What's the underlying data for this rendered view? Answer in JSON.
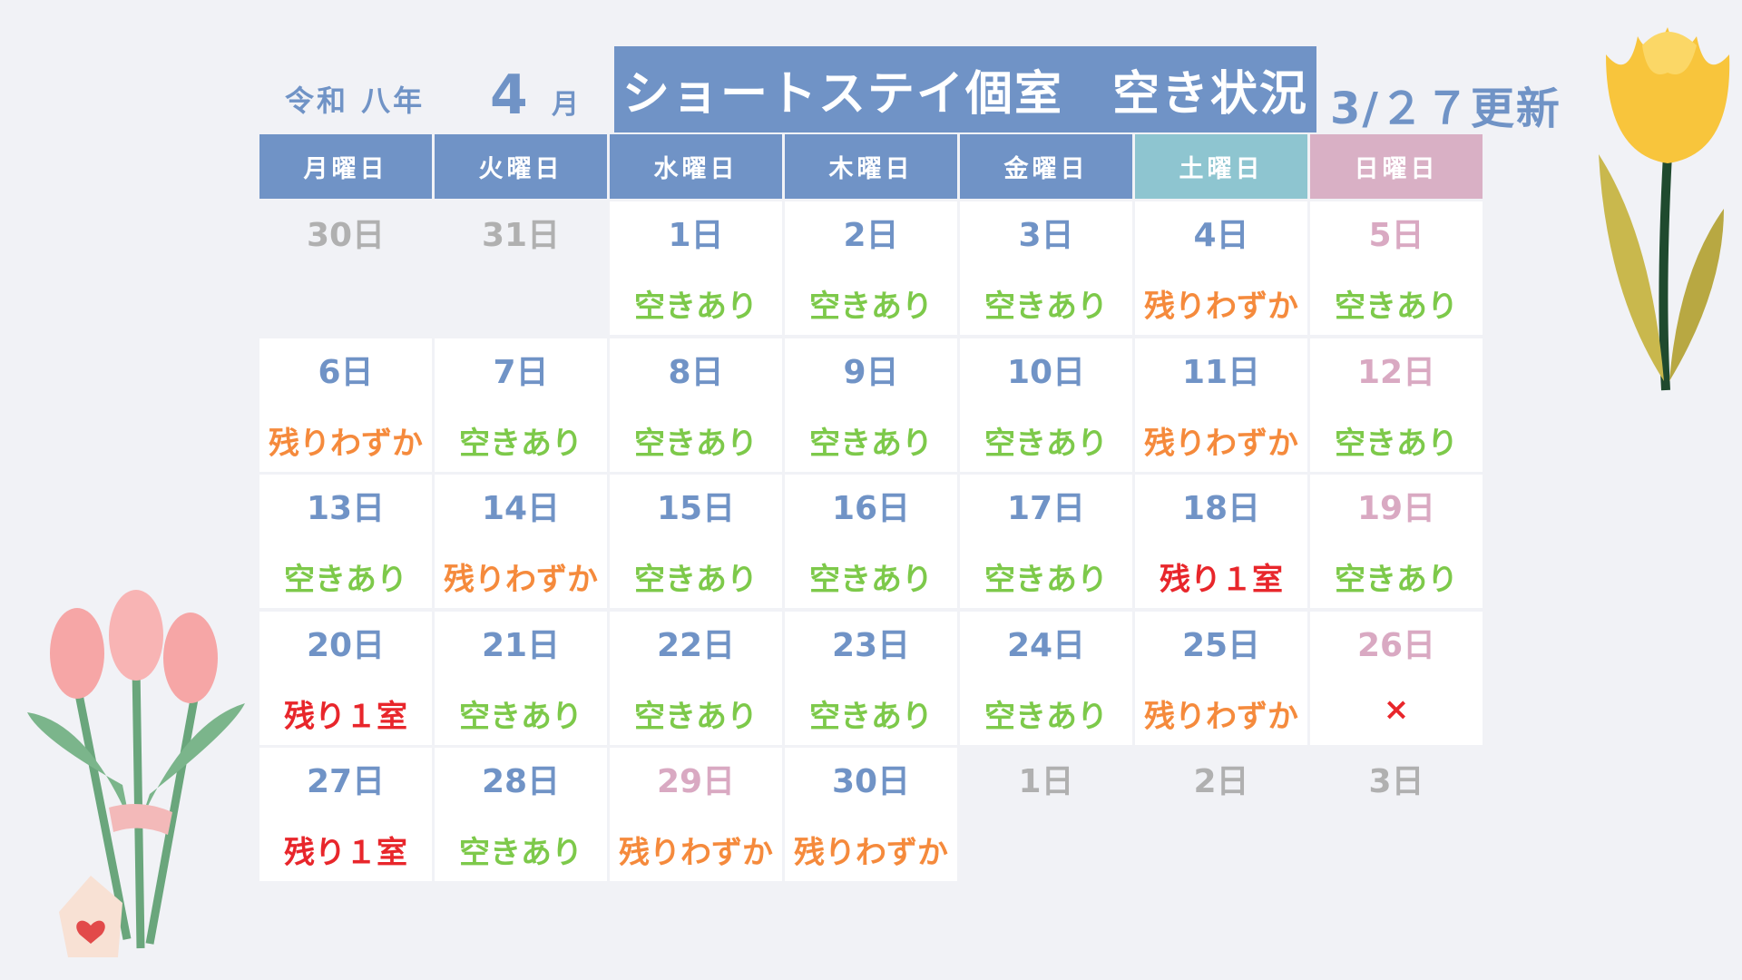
{
  "header": {
    "era": "令和 八年",
    "month": "4",
    "month_unit": "月",
    "title": "ショートステイ個室　空き状況",
    "updated": "3/２７更新"
  },
  "weekdays": [
    {
      "label": "月曜日",
      "color": "#7093c6"
    },
    {
      "label": "火曜日",
      "color": "#7093c6"
    },
    {
      "label": "水曜日",
      "color": "#7093c6"
    },
    {
      "label": "木曜日",
      "color": "#7093c6"
    },
    {
      "label": "金曜日",
      "color": "#7093c6"
    },
    {
      "label": "土曜日",
      "color": "#8ec5d0"
    },
    {
      "label": "日曜日",
      "color": "#d9b0c5"
    }
  ],
  "weeks": [
    [
      {
        "day": "30日",
        "day_color": "#b0b0b0"
      },
      {
        "day": "31日",
        "day_color": "#b0b0b0"
      },
      {
        "day": "1日",
        "day_color": "#7093c6",
        "status": "空きあり",
        "status_color": "#7dc94a"
      },
      {
        "day": "2日",
        "day_color": "#7093c6",
        "status": "空きあり",
        "status_color": "#7dc94a"
      },
      {
        "day": "3日",
        "day_color": "#7093c6",
        "status": "空きあり",
        "status_color": "#7dc94a"
      },
      {
        "day": "4日",
        "day_color": "#7093c6",
        "status": "残りわずか",
        "status_color": "#f58a3c"
      },
      {
        "day": "5日",
        "day_color": "#d9a9c2",
        "status": "空きあり",
        "status_color": "#7dc94a"
      }
    ],
    [
      {
        "day": "6日",
        "day_color": "#7093c6",
        "status": "残りわずか",
        "status_color": "#f58a3c"
      },
      {
        "day": "7日",
        "day_color": "#7093c6",
        "status": "空きあり",
        "status_color": "#7dc94a"
      },
      {
        "day": "8日",
        "day_color": "#7093c6",
        "status": "空きあり",
        "status_color": "#7dc94a"
      },
      {
        "day": "9日",
        "day_color": "#7093c6",
        "status": "空きあり",
        "status_color": "#7dc94a"
      },
      {
        "day": "10日",
        "day_color": "#7093c6",
        "status": "空きあり",
        "status_color": "#7dc94a"
      },
      {
        "day": "11日",
        "day_color": "#7093c6",
        "status": "残りわずか",
        "status_color": "#f58a3c"
      },
      {
        "day": "12日",
        "day_color": "#d9a9c2",
        "status": "空きあり",
        "status_color": "#7dc94a"
      }
    ],
    [
      {
        "day": "13日",
        "day_color": "#7093c6",
        "status": "空きあり",
        "status_color": "#7dc94a"
      },
      {
        "day": "14日",
        "day_color": "#7093c6",
        "status": "残りわずか",
        "status_color": "#f58a3c"
      },
      {
        "day": "15日",
        "day_color": "#7093c6",
        "status": "空きあり",
        "status_color": "#7dc94a"
      },
      {
        "day": "16日",
        "day_color": "#7093c6",
        "status": "空きあり",
        "status_color": "#7dc94a"
      },
      {
        "day": "17日",
        "day_color": "#7093c6",
        "status": "空きあり",
        "status_color": "#7dc94a"
      },
      {
        "day": "18日",
        "day_color": "#7093c6",
        "status": "残り１室",
        "status_color": "#e8262b"
      },
      {
        "day": "19日",
        "day_color": "#d9a9c2",
        "status": "空きあり",
        "status_color": "#7dc94a"
      }
    ],
    [
      {
        "day": "20日",
        "day_color": "#7093c6",
        "status": "残り１室",
        "status_color": "#e8262b"
      },
      {
        "day": "21日",
        "day_color": "#7093c6",
        "status": "空きあり",
        "status_color": "#7dc94a"
      },
      {
        "day": "22日",
        "day_color": "#7093c6",
        "status": "空きあり",
        "status_color": "#7dc94a"
      },
      {
        "day": "23日",
        "day_color": "#7093c6",
        "status": "空きあり",
        "status_color": "#7dc94a"
      },
      {
        "day": "24日",
        "day_color": "#7093c6",
        "status": "空きあり",
        "status_color": "#7dc94a"
      },
      {
        "day": "25日",
        "day_color": "#7093c6",
        "status": "残りわずか",
        "status_color": "#f58a3c"
      },
      {
        "day": "26日",
        "day_color": "#d9a9c2",
        "status": "×",
        "status_color": "#e8262b"
      }
    ],
    [
      {
        "day": "27日",
        "day_color": "#7093c6",
        "status": "残り１室",
        "status_color": "#e8262b"
      },
      {
        "day": "28日",
        "day_color": "#7093c6",
        "status": "空きあり",
        "status_color": "#7dc94a"
      },
      {
        "day": "29日",
        "day_color": "#d9a9c2",
        "status": "残りわずか",
        "status_color": "#f58a3c"
      },
      {
        "day": "30日",
        "day_color": "#7093c6",
        "status": "残りわずか",
        "status_color": "#f58a3c"
      },
      {
        "day": "1日",
        "day_color": "#b0b0b0"
      },
      {
        "day": "2日",
        "day_color": "#b0b0b0"
      },
      {
        "day": "3日",
        "day_color": "#b0b0b0"
      }
    ]
  ]
}
